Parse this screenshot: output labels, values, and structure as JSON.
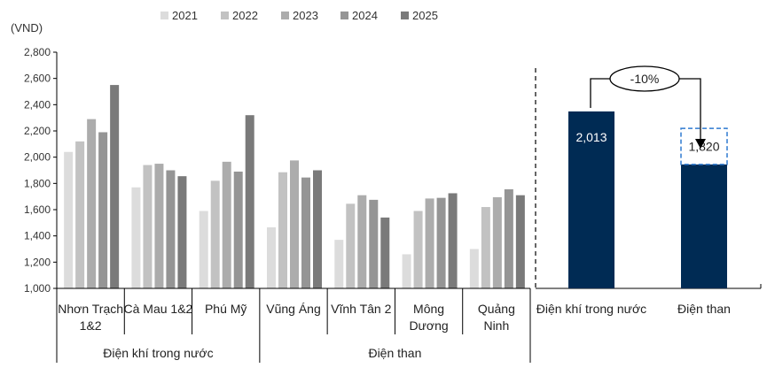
{
  "chart_data": [
    {
      "type": "bar",
      "ylabel": "(VND)",
      "ylim": [
        1000,
        2800
      ],
      "ytick_step": 200,
      "yticks": [
        "1,000",
        "1,200",
        "1,400",
        "1,600",
        "1,800",
        "2,000",
        "2,200",
        "2,400",
        "2,600",
        "2,800"
      ],
      "legend_position": "top",
      "categories": [
        "Nhơn Trạch 1&2",
        "Cà Mau 1&2",
        "Phú Mỹ",
        "Vũng Áng",
        "Vĩnh Tân 2",
        "Mông Dương",
        "Quảng Ninh"
      ],
      "category_labels": [
        [
          "Nhơn Trạch",
          "1&2"
        ],
        [
          "Cà Mau 1&2"
        ],
        [
          "Phú Mỹ"
        ],
        [
          "Vũng Áng"
        ],
        [
          "Vĩnh Tân 2"
        ],
        [
          "Mông",
          "Dương"
        ],
        [
          "Quảng",
          "Ninh"
        ]
      ],
      "groups": [
        {
          "label": "Điện khí trong nước",
          "span": [
            0,
            2
          ]
        },
        {
          "label": "Điện than",
          "span": [
            3,
            6
          ]
        }
      ],
      "series": [
        {
          "name": "2021",
          "color": "#dcdcdc",
          "values": [
            2040,
            1770,
            1590,
            1465,
            1370,
            1260,
            1300
          ]
        },
        {
          "name": "2022",
          "color": "#c2c2c2",
          "values": [
            2120,
            1940,
            1820,
            1885,
            1645,
            1590,
            1620
          ]
        },
        {
          "name": "2023",
          "color": "#acacac",
          "values": [
            2290,
            1950,
            1965,
            1975,
            1710,
            1685,
            1695
          ]
        },
        {
          "name": "2024",
          "color": "#959595",
          "values": [
            2190,
            1900,
            1890,
            1845,
            1675,
            1690,
            1755
          ]
        },
        {
          "name": "2025",
          "color": "#7a7a7a",
          "values": [
            2550,
            1855,
            2320,
            1900,
            1540,
            1725,
            1710
          ]
        }
      ]
    },
    {
      "type": "bar",
      "categories": [
        "Điện khí trong nước",
        "Điện than"
      ],
      "values": [
        2013,
        1820
      ],
      "value_labels": [
        "2,013",
        "1,820"
      ],
      "solid_portion": [
        2013,
        1410
      ],
      "annotation": "-10%",
      "bar_color": "#002b54"
    }
  ]
}
